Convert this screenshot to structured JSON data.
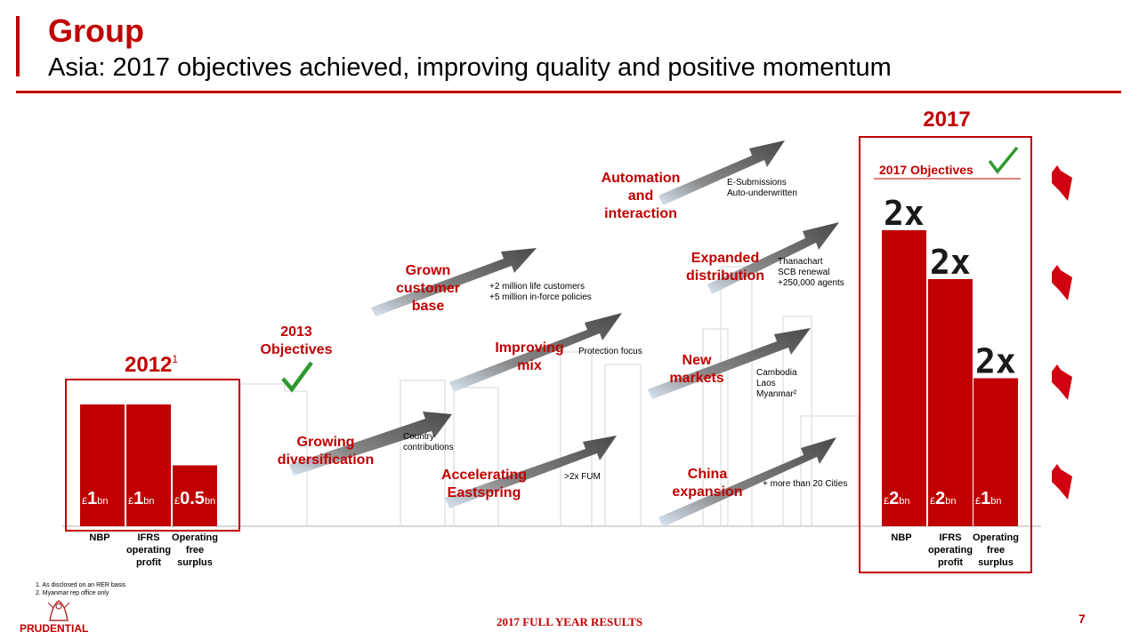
{
  "header": {
    "title": "Group",
    "subtitle": "Asia: 2017 objectives achieved, improving quality and positive momentum"
  },
  "colors": {
    "accent": "#c00000",
    "arrow": "#555555",
    "skyline": "#e4e4e4"
  },
  "chart_data": [
    {
      "type": "bar",
      "title": "2012",
      "title_sup": "1",
      "categories": [
        "NBP",
        "IFRS operating profit",
        "Operating free surplus"
      ],
      "category_lines": [
        [
          "NBP"
        ],
        [
          "IFRS",
          "operating",
          "profit"
        ],
        [
          "Operating",
          "free",
          "surplus"
        ]
      ],
      "values": [
        1,
        1,
        0.5
      ],
      "unit_prefix": "£",
      "unit_suffix": "bn",
      "value_labels": [
        "1",
        "1",
        "0.5"
      ]
    },
    {
      "type": "bar",
      "title": "2017",
      "box_title": "2017 Objectives",
      "categories": [
        "NBP",
        "IFRS operating profit",
        "Operating free surplus"
      ],
      "category_lines": [
        [
          "NBP"
        ],
        [
          "IFRS",
          "operating",
          "profit"
        ],
        [
          "Operating",
          "free",
          "surplus"
        ]
      ],
      "values": [
        2,
        2,
        1
      ],
      "unit_prefix": "£",
      "unit_suffix": "bn",
      "value_labels": [
        "2",
        "2",
        "1"
      ],
      "multipliers": [
        "2x",
        "2x",
        "2x"
      ]
    }
  ],
  "objectives_2013": {
    "year": "2013",
    "label": "Objectives"
  },
  "themes": [
    {
      "id": "growing-diversification",
      "label_lines": [
        "Growing",
        "diversification"
      ],
      "detail_lines": [
        "Country",
        "contributions"
      ]
    },
    {
      "id": "grown-customer-base",
      "label_lines": [
        "Grown",
        "customer",
        "base"
      ],
      "detail_lines": [
        "+2 million life customers",
        "+5 million in-force policies"
      ]
    },
    {
      "id": "accelerating-eastspring",
      "label_lines": [
        "Accelerating",
        "Eastspring"
      ],
      "detail_lines": [
        ">2x FUM"
      ]
    },
    {
      "id": "improving-mix",
      "label_lines": [
        "Improving",
        "mix"
      ],
      "detail_lines": [
        "Protection focus"
      ]
    },
    {
      "id": "automation-and-interaction",
      "label_lines": [
        "Automation",
        "and",
        "interaction"
      ],
      "detail_lines": [
        "E-Submissions",
        "Auto-underwritten"
      ]
    },
    {
      "id": "new-markets",
      "label_lines": [
        "New",
        "markets"
      ],
      "detail_lines": [
        "Cambodia",
        "Laos",
        "Myanmar²"
      ]
    },
    {
      "id": "expanded-distribution",
      "label_lines": [
        "Expanded",
        "distribution"
      ],
      "detail_lines": [
        "Thanachart",
        "SCB renewal",
        "+250,000 agents"
      ]
    },
    {
      "id": "china-expansion",
      "label_lines": [
        "China",
        "expansion"
      ],
      "detail_lines": [
        "+ more than 20 Cities"
      ]
    }
  ],
  "footnotes": [
    "1.  As disclosed on an RER basis",
    "2.  Myanmar rep office only"
  ],
  "footer": {
    "center": "2017 FULL YEAR RESULTS",
    "page_number": "7",
    "logo": "PRUDENTIAL"
  }
}
